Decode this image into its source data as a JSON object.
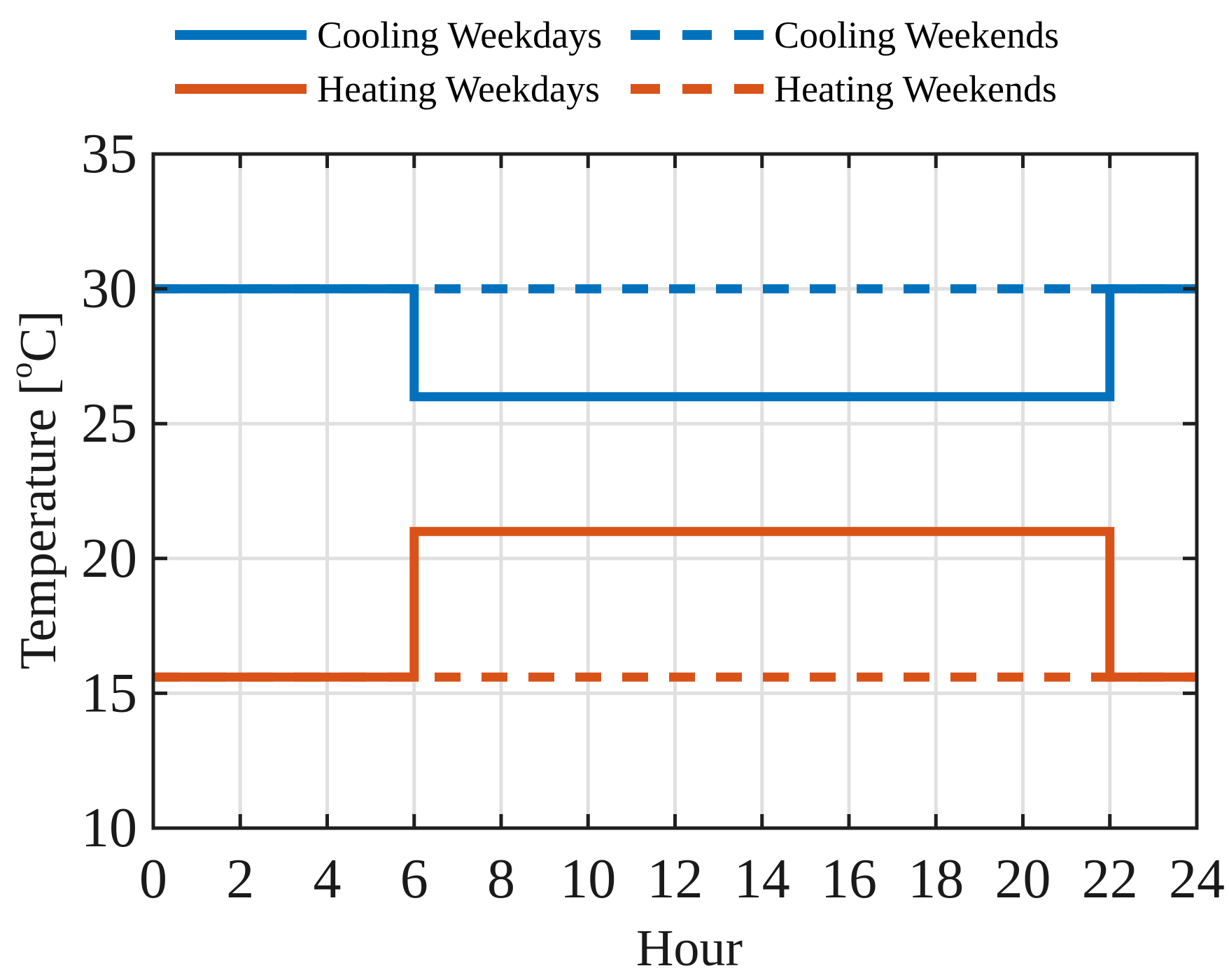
{
  "colors": {
    "cooling": "#0072BD",
    "heating": "#D95319",
    "grid": "#E0E0E0",
    "axis": "#1F1F1F",
    "text": "#1A1A1A",
    "background": "#FFFFFF"
  },
  "legend": {
    "items": [
      {
        "label": "Cooling Weekdays",
        "color": "#0072BD",
        "dash": "solid"
      },
      {
        "label": "Cooling Weekends",
        "color": "#0072BD",
        "dash": "dashed"
      },
      {
        "label": "Heating Weekdays",
        "color": "#D95319",
        "dash": "solid"
      },
      {
        "label": "Heating Weekends",
        "color": "#D95319",
        "dash": "dashed"
      }
    ]
  },
  "chart_data": {
    "type": "line",
    "title": "",
    "xlabel": "Hour",
    "ylabel": "Temperature [°C]",
    "xlim": [
      0,
      24
    ],
    "ylim": [
      10,
      35
    ],
    "xticks": [
      0,
      2,
      4,
      6,
      8,
      10,
      12,
      14,
      16,
      18,
      20,
      22,
      24
    ],
    "yticks": [
      10,
      15,
      20,
      25,
      30,
      35
    ],
    "grid": true,
    "legend_position": "top",
    "series": [
      {
        "name": "Cooling Weekdays",
        "style": "solid",
        "color": "#0072BD",
        "x": [
          0,
          6,
          6,
          22,
          22,
          24
        ],
        "y": [
          30,
          30,
          26,
          26,
          30,
          30
        ]
      },
      {
        "name": "Cooling Weekends",
        "style": "dashed",
        "color": "#0072BD",
        "x": [
          0,
          24
        ],
        "y": [
          30,
          30
        ]
      },
      {
        "name": "Heating Weekdays",
        "style": "solid",
        "color": "#D95319",
        "x": [
          0,
          6,
          6,
          22,
          22,
          24
        ],
        "y": [
          15.6,
          15.6,
          21,
          21,
          15.6,
          15.6
        ]
      },
      {
        "name": "Heating Weekends",
        "style": "dashed",
        "color": "#D95319",
        "x": [
          0,
          24
        ],
        "y": [
          15.6,
          15.6
        ]
      }
    ]
  }
}
